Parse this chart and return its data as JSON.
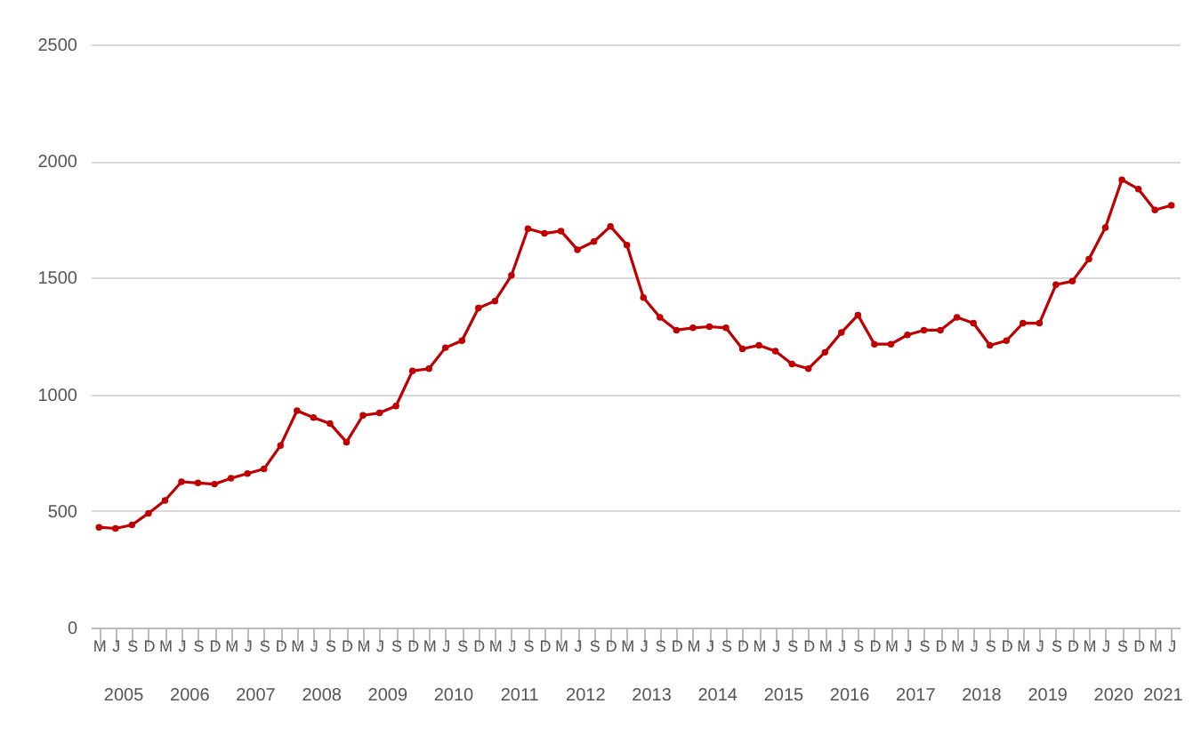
{
  "chart_data": {
    "type": "line",
    "categories": [
      "M",
      "J",
      "S",
      "D",
      "M",
      "J",
      "S",
      "D",
      "M",
      "J",
      "S",
      "D",
      "M",
      "J",
      "S",
      "D",
      "M",
      "J",
      "S",
      "D",
      "M",
      "J",
      "S",
      "D",
      "M",
      "J",
      "S",
      "D",
      "M",
      "J",
      "S",
      "D",
      "M",
      "J",
      "S",
      "D",
      "M",
      "J",
      "S",
      "D",
      "M",
      "J",
      "S",
      "D",
      "M",
      "J",
      "S",
      "D",
      "M",
      "J",
      "S",
      "D",
      "M",
      "J",
      "S",
      "D",
      "M",
      "J",
      "S",
      "D",
      "M",
      "J",
      "S",
      "D",
      "M",
      "J"
    ],
    "series": [
      {
        "color": "#c00000",
        "values": [
          430,
          425,
          440,
          490,
          545,
          625,
          620,
          615,
          640,
          660,
          680,
          780,
          930,
          900,
          875,
          795,
          910,
          920,
          950,
          1100,
          1110,
          1200,
          1230,
          1370,
          1400,
          1510,
          1710,
          1690,
          1700,
          1620,
          1655,
          1720,
          1640,
          1415,
          1330,
          1275,
          1285,
          1290,
          1285,
          1195,
          1210,
          1185,
          1130,
          1110,
          1180,
          1265,
          1340,
          1215,
          1215,
          1255,
          1275,
          1275,
          1330,
          1305,
          1210,
          1230,
          1305,
          1305,
          1470,
          1485,
          1580,
          1715,
          1920,
          1880,
          1790,
          1810
        ]
      }
    ],
    "ylim": [
      0,
      2500
    ],
    "yticks": [
      0,
      500,
      1000,
      1500,
      2000,
      2500
    ],
    "grid": "y",
    "marker": "circle",
    "line_style": "solid",
    "annotations": [
      "2005",
      "2006",
      "2007",
      "2008",
      "2009",
      "2010",
      "2011",
      "2012",
      "2013",
      "2014",
      "2015",
      "2016",
      "2017",
      "2018",
      "2019",
      "2020",
      "2021"
    ]
  }
}
